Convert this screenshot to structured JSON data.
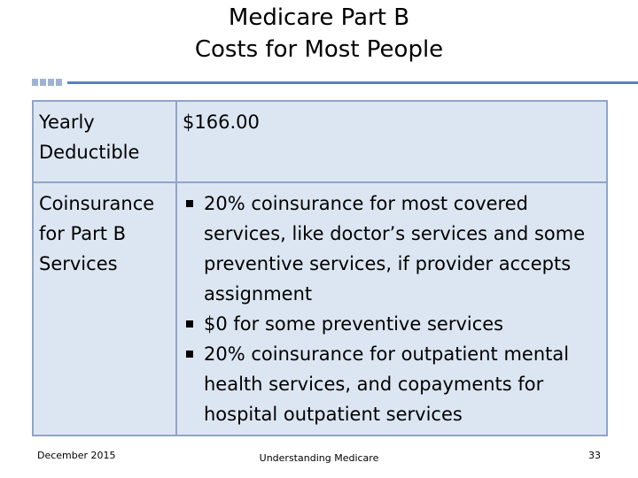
{
  "header": {
    "title_lines": [
      "Medicare Part B",
      "Costs for Most People"
    ]
  },
  "table": {
    "rows": [
      {
        "label": "Yearly Deductible",
        "content": "$166.00"
      },
      {
        "label": "Coinsurance for Part B Services",
        "bullets": [
          "20% coinsurance for most covered services, like doctor’s services and some preventive services, if provider accepts assignment",
          "$0 for some preventive services",
          "20% coinsurance for outpatient mental health services, and copayments for hospital outpatient services"
        ]
      }
    ]
  },
  "footer": {
    "date": "December 2015",
    "center": "Understanding Medicare",
    "page": "33"
  }
}
